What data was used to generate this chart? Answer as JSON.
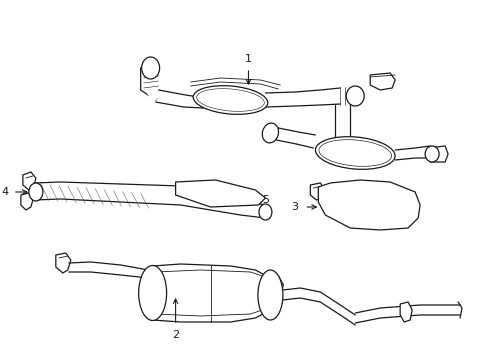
{
  "background_color": "#ffffff",
  "line_color": "#1a1a1a",
  "lw": 0.9,
  "lw_thin": 0.6,
  "fig_width": 4.89,
  "fig_height": 3.6,
  "dpi": 100
}
